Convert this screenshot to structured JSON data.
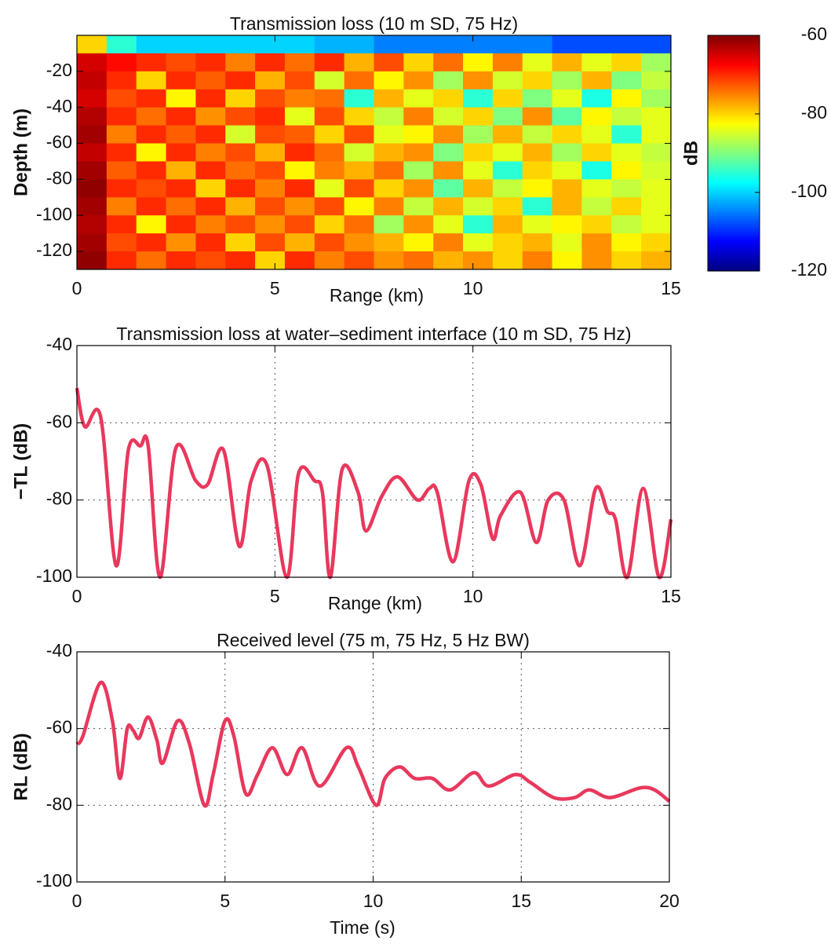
{
  "chart_data": [
    {
      "type": "heatmap",
      "title": "Transmission loss (10 m SD, 75 Hz)",
      "xlabel": "Range (km)",
      "ylabel": "Depth (m)",
      "x": [
        0.375,
        1.125,
        1.875,
        2.625,
        3.375,
        4.125,
        4.875,
        5.625,
        6.375,
        7.125,
        7.875,
        8.625,
        9.375,
        10.125,
        10.875,
        11.625,
        12.375,
        13.125,
        13.875,
        14.625
      ],
      "y": [
        -5,
        -15,
        -25,
        -35,
        -45,
        -55,
        -65,
        -75,
        -85,
        -95,
        -105,
        -115,
        -125
      ],
      "z": [
        [
          -80,
          -95,
          -100,
          -100,
          -100,
          -100,
          -100,
          -100,
          -102,
          -102,
          -105,
          -105,
          -105,
          -105,
          -105,
          -105,
          -108,
          -108,
          -108,
          -108
        ],
        [
          -65,
          -68,
          -70,
          -72,
          -70,
          -75,
          -70,
          -74,
          -70,
          -78,
          -72,
          -80,
          -74,
          -82,
          -75,
          -84,
          -78,
          -84,
          -80,
          -88
        ],
        [
          -64,
          -70,
          -80,
          -70,
          -73,
          -70,
          -78,
          -72,
          -85,
          -74,
          -82,
          -76,
          -88,
          -76,
          -85,
          -80,
          -88,
          -78,
          -90,
          -86
        ],
        [
          -65,
          -72,
          -70,
          -82,
          -70,
          -80,
          -72,
          -75,
          -74,
          -95,
          -78,
          -84,
          -80,
          -95,
          -80,
          -90,
          -84,
          -96,
          -82,
          -88
        ],
        [
          -63,
          -70,
          -74,
          -70,
          -76,
          -72,
          -70,
          -84,
          -72,
          -80,
          -86,
          -75,
          -85,
          -80,
          -90,
          -76,
          -92,
          -82,
          -86,
          -84
        ],
        [
          -62,
          -75,
          -70,
          -73,
          -70,
          -85,
          -72,
          -73,
          -80,
          -72,
          -84,
          -82,
          -76,
          -88,
          -78,
          -86,
          -80,
          -84,
          -95,
          -84
        ],
        [
          -64,
          -70,
          -82,
          -70,
          -75,
          -72,
          -78,
          -70,
          -74,
          -85,
          -78,
          -76,
          -90,
          -80,
          -84,
          -78,
          -88,
          -80,
          -84,
          -86
        ],
        [
          -62,
          -73,
          -70,
          -78,
          -70,
          -74,
          -72,
          -82,
          -75,
          -78,
          -74,
          -88,
          -76,
          -84,
          -95,
          -80,
          -84,
          -96,
          -82,
          -85
        ],
        [
          -61,
          -70,
          -72,
          -70,
          -80,
          -70,
          -75,
          -70,
          -84,
          -72,
          -80,
          -76,
          -92,
          -78,
          -86,
          -82,
          -78,
          -84,
          -86,
          -84
        ],
        [
          -62,
          -75,
          -70,
          -74,
          -70,
          -78,
          -72,
          -76,
          -72,
          -82,
          -75,
          -86,
          -78,
          -85,
          -80,
          -95,
          -78,
          -86,
          -80,
          -84
        ],
        [
          -63,
          -70,
          -82,
          -70,
          -75,
          -72,
          -76,
          -72,
          -80,
          -74,
          -88,
          -76,
          -84,
          -95,
          -78,
          -84,
          -82,
          -80,
          -86,
          -84
        ],
        [
          -62,
          -72,
          -70,
          -76,
          -70,
          -80,
          -72,
          -78,
          -72,
          -76,
          -78,
          -82,
          -75,
          -84,
          -80,
          -78,
          -84,
          -76,
          -82,
          -80
        ],
        [
          -61,
          -70,
          -74,
          -70,
          -72,
          -70,
          -80,
          -70,
          -75,
          -72,
          -76,
          -74,
          -78,
          -76,
          -80,
          -75,
          -82,
          -76,
          -80,
          -78
        ]
      ],
      "xlim": [
        0,
        15
      ],
      "ylim": [
        -130,
        0
      ],
      "xticks": [
        0,
        5,
        10,
        15
      ],
      "yticks": [
        -20,
        -40,
        -60,
        -80,
        -100,
        -120
      ],
      "grid": false,
      "clabel": "dB",
      "clim": [
        -120,
        -60
      ],
      "cticks": [
        -60,
        -80,
        -100,
        -120
      ]
    },
    {
      "type": "line",
      "title": "Transmission loss at water–sediment interface (10 m SD, 75 Hz)",
      "xlabel": "Range (km)",
      "ylabel": "−TL (dB)",
      "x": [
        0,
        0.2,
        0.6,
        0.99,
        1.3,
        1.6,
        1.8,
        2.1,
        2.5,
        3.0,
        3.3,
        3.7,
        4.1,
        4.4,
        4.8,
        5.3,
        5.6,
        6.0,
        6.2,
        6.4,
        6.7,
        7.1,
        7.3,
        7.7,
        8.1,
        8.6,
        8.9,
        9.1,
        9.5,
        9.9,
        10.2,
        10.5,
        10.7,
        11.2,
        11.6,
        11.9,
        12.3,
        12.7,
        13.1,
        13.4,
        13.6,
        13.9,
        14.3,
        14.7,
        15
      ],
      "series": [
        {
          "color": "#e8385c",
          "values": [
            -51,
            -61,
            -58.5,
            -97,
            -67,
            -66,
            -66,
            -100,
            -66.5,
            -75,
            -76,
            -67,
            -92,
            -75,
            -71,
            -100,
            -73,
            -75,
            -78,
            -100,
            -72,
            -78,
            -88,
            -79,
            -74,
            -80,
            -77,
            -78,
            -96,
            -75,
            -76,
            -90,
            -84,
            -78,
            -91,
            -80,
            -80,
            -97,
            -77,
            -83,
            -85,
            -100,
            -77,
            -100,
            -85
          ]
        }
      ],
      "xlim": [
        0,
        15
      ],
      "ylim": [
        -100,
        -40
      ],
      "xticks": [
        0,
        5,
        10,
        15
      ],
      "yticks": [
        -40,
        -60,
        -80,
        -100
      ],
      "grid": true
    },
    {
      "type": "line",
      "title": "Received level (75 m, 75 Hz, 5 Hz BW)",
      "xlabel": "Time (s)",
      "ylabel": "RL (dB)",
      "x": [
        0,
        0.2,
        0.8,
        1.2,
        1.45,
        1.7,
        1.9,
        2.1,
        2.4,
        2.7,
        2.9,
        3.4,
        3.8,
        4.3,
        4.6,
        5.0,
        5.3,
        5.7,
        6.1,
        6.6,
        7.1,
        7.6,
        8.2,
        9.1,
        9.5,
        10.1,
        10.4,
        10.9,
        11.4,
        12.0,
        12.6,
        13.4,
        13.9,
        14.8,
        15.3,
        16.1,
        16.8,
        17.3,
        18.0,
        19.0,
        19.5,
        20
      ],
      "series": [
        {
          "color": "#e8385c",
          "values": [
            -64,
            -62,
            -48,
            -58,
            -73,
            -60,
            -60.5,
            -62.5,
            -57,
            -63,
            -69,
            -58,
            -64,
            -80,
            -72,
            -58,
            -62,
            -77,
            -72,
            -65,
            -72,
            -65,
            -75,
            -65,
            -70,
            -80,
            -73,
            -70,
            -73,
            -73,
            -76,
            -71.5,
            -75,
            -72,
            -74,
            -78,
            -78,
            -76,
            -78,
            -75.5,
            -76,
            -79
          ]
        }
      ],
      "xlim": [
        0,
        20
      ],
      "ylim": [
        -100,
        -40
      ],
      "xticks": [
        0,
        5,
        10,
        15,
        20
      ],
      "yticks": [
        -40,
        -60,
        -80,
        -100
      ],
      "grid": true
    }
  ]
}
